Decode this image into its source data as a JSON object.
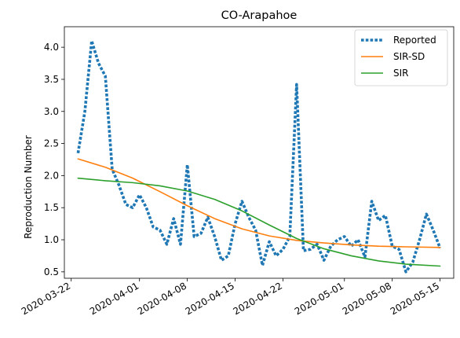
{
  "chart_data": {
    "type": "line",
    "title": "CO-Arapahoe",
    "xlabel": "",
    "ylabel": "Reproduction Number",
    "xlim": [
      "2020-03-21",
      "2020-05-17"
    ],
    "ylim": [
      0.4,
      4.32
    ],
    "x_ticks": [
      "2020-03-22",
      "2020-04-01",
      "2020-04-08",
      "2020-04-15",
      "2020-04-22",
      "2020-05-01",
      "2020-05-08",
      "2020-05-15"
    ],
    "y_ticks": [
      0.5,
      1.0,
      1.5,
      2.0,
      2.5,
      3.0,
      3.5,
      4.0
    ],
    "y_tick_labels": [
      "0.5",
      "1.0",
      "1.5",
      "2.0",
      "2.5",
      "3.0",
      "3.5",
      "4.0"
    ],
    "grid": false,
    "legend_position": "top-right",
    "series": [
      {
        "name": "Reported",
        "color": "#1f77b4",
        "style": "dotted",
        "x": [
          "2020-03-23",
          "2020-03-24",
          "2020-03-25",
          "2020-03-26",
          "2020-03-27",
          "2020-03-28",
          "2020-03-29",
          "2020-03-30",
          "2020-03-31",
          "2020-04-01",
          "2020-04-02",
          "2020-04-03",
          "2020-04-04",
          "2020-04-05",
          "2020-04-06",
          "2020-04-07",
          "2020-04-08",
          "2020-04-09",
          "2020-04-10",
          "2020-04-11",
          "2020-04-12",
          "2020-04-13",
          "2020-04-14",
          "2020-04-15",
          "2020-04-16",
          "2020-04-17",
          "2020-04-18",
          "2020-04-19",
          "2020-04-20",
          "2020-04-21",
          "2020-04-22",
          "2020-04-23",
          "2020-04-24",
          "2020-04-25",
          "2020-04-26",
          "2020-04-27",
          "2020-04-28",
          "2020-04-29",
          "2020-04-30",
          "2020-05-01",
          "2020-05-02",
          "2020-05-03",
          "2020-05-04",
          "2020-05-05",
          "2020-05-06",
          "2020-05-07",
          "2020-05-08",
          "2020-05-09",
          "2020-05-10",
          "2020-05-11",
          "2020-05-12",
          "2020-05-13",
          "2020-05-14",
          "2020-05-15"
        ],
        "values": [
          2.35,
          3.0,
          4.1,
          3.75,
          3.55,
          2.1,
          1.85,
          1.55,
          1.5,
          1.7,
          1.5,
          1.2,
          1.15,
          0.93,
          1.33,
          0.93,
          2.17,
          1.05,
          1.1,
          1.35,
          1.05,
          0.68,
          0.75,
          1.25,
          1.6,
          1.35,
          1.15,
          0.6,
          0.97,
          0.75,
          0.85,
          1.05,
          3.42,
          0.83,
          0.85,
          0.93,
          0.68,
          0.9,
          1.0,
          1.05,
          0.9,
          1.0,
          0.73,
          1.6,
          1.3,
          1.38,
          0.9,
          0.85,
          0.5,
          0.65,
          1.0,
          1.4,
          1.15,
          0.87
        ]
      },
      {
        "name": "SIR-SD",
        "color": "#ff7f0e",
        "style": "solid",
        "x": [
          "2020-03-23",
          "2020-03-27",
          "2020-03-31",
          "2020-04-04",
          "2020-04-08",
          "2020-04-12",
          "2020-04-16",
          "2020-04-20",
          "2020-04-24",
          "2020-04-28",
          "2020-05-02",
          "2020-05-06",
          "2020-05-10",
          "2020-05-15"
        ],
        "values": [
          2.26,
          2.13,
          1.96,
          1.75,
          1.53,
          1.33,
          1.17,
          1.06,
          0.99,
          0.95,
          0.92,
          0.9,
          0.89,
          0.88
        ]
      },
      {
        "name": "SIR",
        "color": "#2ca02c",
        "style": "solid",
        "x": [
          "2020-03-23",
          "2020-03-27",
          "2020-03-31",
          "2020-04-04",
          "2020-04-08",
          "2020-04-12",
          "2020-04-16",
          "2020-04-20",
          "2020-04-24",
          "2020-04-28",
          "2020-05-02",
          "2020-05-06",
          "2020-05-10",
          "2020-05-15"
        ],
        "values": [
          1.96,
          1.92,
          1.89,
          1.84,
          1.76,
          1.63,
          1.45,
          1.23,
          1.02,
          0.86,
          0.75,
          0.67,
          0.62,
          0.59
        ]
      }
    ]
  }
}
